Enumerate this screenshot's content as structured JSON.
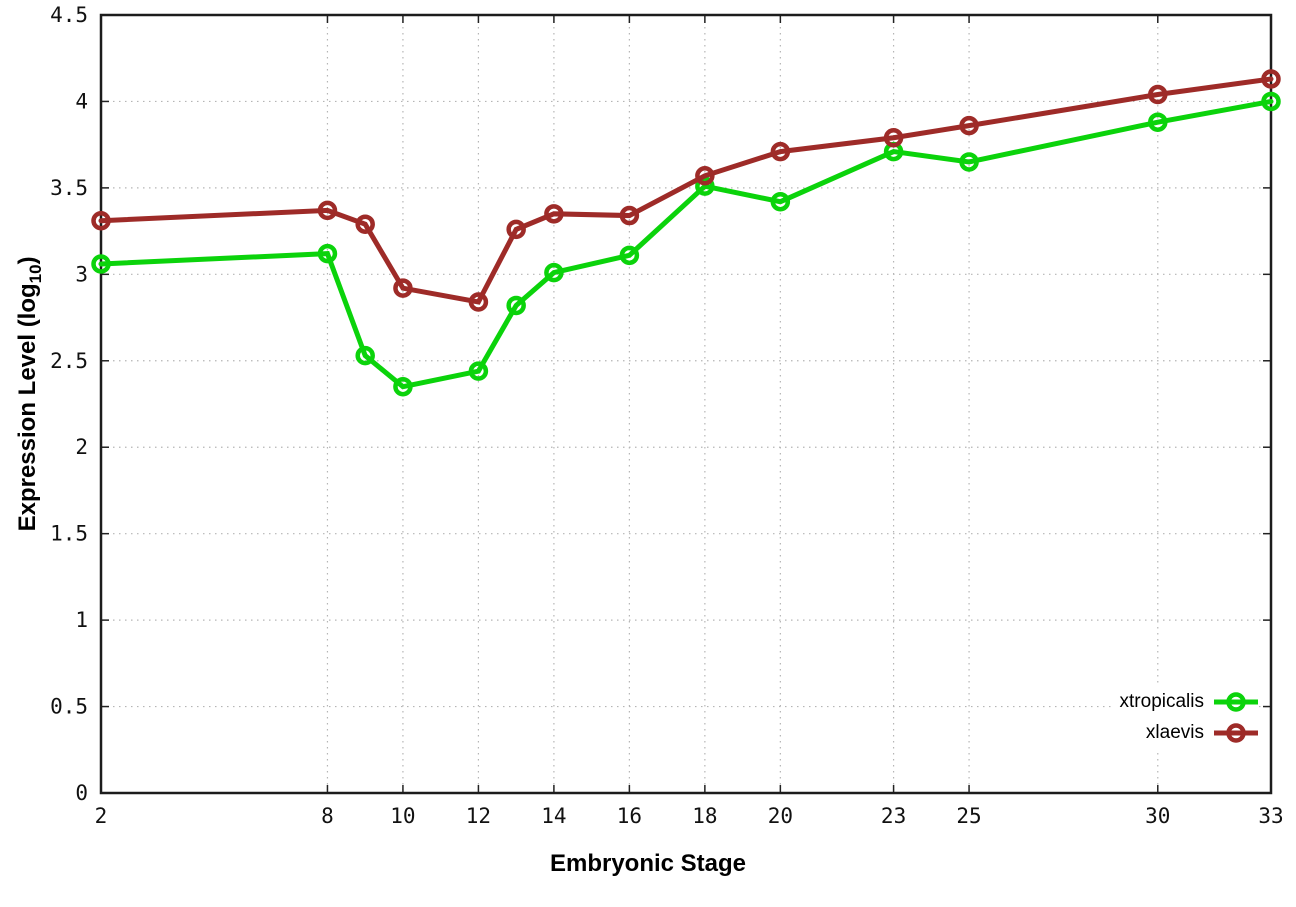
{
  "chart": {
    "xlabel": "Embryonic Stage",
    "ylabel_text": "Expression Level (log",
    "ylabel_sub": "10",
    "ylabel_close": ")"
  },
  "chart_data": {
    "type": "line",
    "x": [
      2,
      8,
      9,
      10,
      12,
      13,
      14,
      16,
      18,
      20,
      23,
      25,
      30,
      33
    ],
    "series": [
      {
        "name": "xtropicalis",
        "color": "#0bd30b",
        "values": [
          3.06,
          3.12,
          2.53,
          2.35,
          2.44,
          2.82,
          3.01,
          3.11,
          3.51,
          3.42,
          3.71,
          3.65,
          3.88,
          4.0
        ]
      },
      {
        "name": "xlaevis",
        "color": "#9e2b28",
        "values": [
          3.31,
          3.37,
          3.29,
          2.92,
          2.84,
          3.26,
          3.35,
          3.34,
          3.57,
          3.71,
          3.79,
          3.86,
          4.04,
          4.13
        ]
      }
    ],
    "title": "",
    "xlabel": "Embryonic Stage",
    "ylabel": "Expression Level (log10)",
    "xticks": [
      2,
      8,
      10,
      12,
      14,
      16,
      18,
      20,
      23,
      25,
      30,
      33
    ],
    "yticks": [
      0,
      0.5,
      1,
      1.5,
      2,
      2.5,
      3,
      3.5,
      4,
      4.5
    ],
    "xlim": [
      2,
      33
    ],
    "ylim": [
      0,
      4.5
    ],
    "grid": true,
    "grid_color": "#b5b5b5",
    "border_color": "#1c1c1c",
    "tick_label_color": "#111111",
    "legend_position": "bottom-right"
  }
}
